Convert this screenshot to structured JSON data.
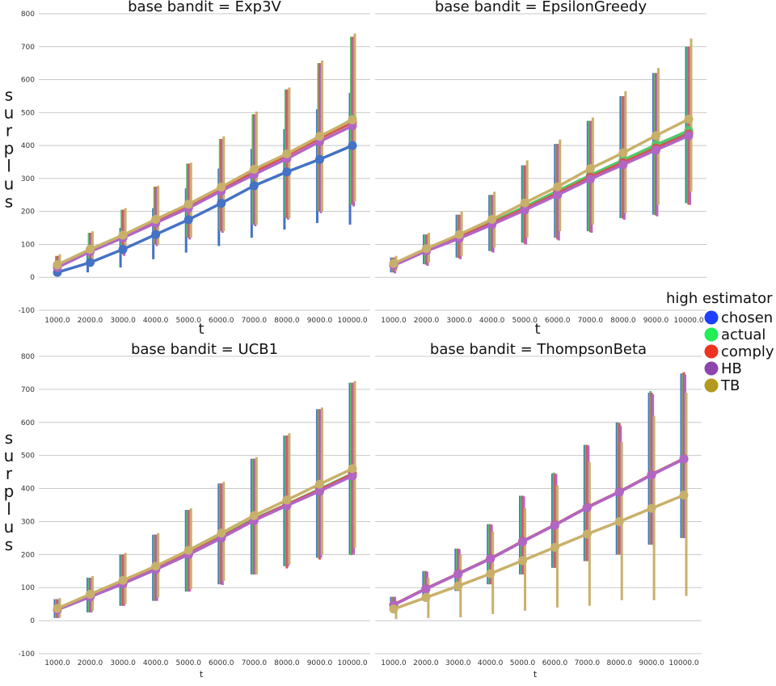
{
  "legend": {
    "title": "high estimator",
    "entries": [
      {
        "name": "chosen",
        "color": "#4472c4"
      },
      {
        "name": "actual",
        "color": "#55c567"
      },
      {
        "name": "comply",
        "color": "#d9534f"
      },
      {
        "name": "HB",
        "color": "#b266c4"
      },
      {
        "name": "TB",
        "color": "#c9b06a"
      }
    ],
    "markers": [
      {
        "name": "chosen",
        "color": "#1f3fff"
      },
      {
        "name": "actual",
        "color": "#22ee55"
      },
      {
        "name": "comply",
        "color": "#ee3322"
      },
      {
        "name": "HB",
        "color": "#8e44ad"
      },
      {
        "name": "TB",
        "color": "#b39a1e"
      }
    ]
  },
  "chart_data": [
    {
      "type": "line",
      "title": "base bandit = Exp3V",
      "xlabel": "t",
      "ylabel": "surplus",
      "x": [
        "1000.0",
        "2000.0",
        "3000.0",
        "4000.0",
        "5000.0",
        "6000.0",
        "7000.0",
        "8000.0",
        "9000.0",
        "10000.0"
      ],
      "ylim": [
        -100,
        800
      ],
      "yticks": [
        -100,
        0,
        100,
        200,
        300,
        400,
        500,
        600,
        700,
        800
      ],
      "series": [
        {
          "name": "chosen",
          "values": [
            15,
            45,
            85,
            130,
            175,
            225,
            278,
            320,
            358,
            400
          ],
          "ci_low": [
            5,
            15,
            30,
            55,
            75,
            95,
            120,
            145,
            165,
            160
          ],
          "ci_high": [
            30,
            90,
            150,
            210,
            270,
            330,
            390,
            450,
            510,
            560
          ]
        },
        {
          "name": "actual",
          "values": [
            38,
            85,
            128,
            175,
            220,
            272,
            322,
            372,
            425,
            480
          ],
          "ci_low": [
            10,
            40,
            70,
            100,
            120,
            140,
            160,
            180,
            200,
            220
          ],
          "ci_high": [
            65,
            135,
            205,
            275,
            345,
            420,
            495,
            570,
            650,
            730
          ]
        },
        {
          "name": "comply",
          "values": [
            36,
            84,
            126,
            172,
            218,
            270,
            320,
            370,
            422,
            470
          ],
          "ci_low": [
            10,
            40,
            70,
            100,
            120,
            140,
            160,
            180,
            200,
            220
          ],
          "ci_high": [
            65,
            135,
            205,
            275,
            345,
            420,
            495,
            570,
            650,
            730
          ]
        },
        {
          "name": "HB",
          "values": [
            30,
            78,
            120,
            165,
            210,
            262,
            312,
            360,
            412,
            460
          ],
          "ci_low": [
            8,
            35,
            65,
            95,
            115,
            135,
            155,
            175,
            195,
            215
          ],
          "ci_high": [
            60,
            130,
            200,
            270,
            340,
            415,
            490,
            565,
            645,
            725
          ]
        },
        {
          "name": "TB",
          "values": [
            38,
            85,
            128,
            176,
            222,
            274,
            328,
            375,
            428,
            478
          ],
          "ci_low": [
            15,
            45,
            75,
            100,
            120,
            140,
            160,
            180,
            200,
            230
          ],
          "ci_high": [
            70,
            140,
            210,
            278,
            348,
            428,
            503,
            576,
            658,
            740
          ]
        }
      ]
    },
    {
      "type": "line",
      "title": "base bandit = EpsilonGreedy",
      "xlabel": "t",
      "ylabel": "",
      "x": [
        "1000.0",
        "2000.0",
        "3000.0",
        "4000.0",
        "5000.0",
        "6000.0",
        "7000.0",
        "8000.0",
        "9000.0",
        "10000.0"
      ],
      "ylim": [
        -100,
        800
      ],
      "yticks": [
        -100,
        0,
        100,
        200,
        300,
        400,
        500,
        600,
        700,
        800
      ],
      "series": [
        {
          "name": "chosen",
          "values": [
            40,
            85,
            122,
            165,
            210,
            258,
            305,
            350,
            395,
            440
          ],
          "ci_low": [
            15,
            40,
            60,
            80,
            105,
            120,
            140,
            180,
            190,
            225
          ],
          "ci_high": [
            60,
            130,
            190,
            250,
            340,
            405,
            475,
            550,
            620,
            700
          ]
        },
        {
          "name": "actual",
          "values": [
            40,
            85,
            125,
            168,
            214,
            262,
            310,
            356,
            402,
            445
          ],
          "ci_low": [
            15,
            40,
            60,
            80,
            105,
            120,
            140,
            180,
            190,
            225
          ],
          "ci_high": [
            60,
            130,
            190,
            250,
            340,
            405,
            475,
            550,
            620,
            700
          ]
        },
        {
          "name": "comply",
          "values": [
            38,
            83,
            122,
            165,
            208,
            255,
            304,
            348,
            392,
            435
          ],
          "ci_low": [
            15,
            38,
            58,
            78,
            102,
            115,
            137,
            178,
            188,
            220
          ],
          "ci_high": [
            60,
            130,
            190,
            250,
            340,
            405,
            475,
            550,
            620,
            700
          ]
        },
        {
          "name": "HB",
          "values": [
            36,
            80,
            118,
            160,
            204,
            250,
            298,
            342,
            386,
            430
          ],
          "ci_low": [
            12,
            35,
            55,
            75,
            100,
            112,
            135,
            175,
            185,
            220
          ],
          "ci_high": [
            58,
            128,
            188,
            248,
            338,
            403,
            473,
            548,
            618,
            698
          ]
        },
        {
          "name": "TB",
          "values": [
            42,
            87,
            130,
            176,
            226,
            275,
            330,
            378,
            430,
            480
          ],
          "ci_low": [
            20,
            45,
            65,
            90,
            120,
            140,
            160,
            195,
            220,
            260
          ],
          "ci_high": [
            65,
            135,
            200,
            260,
            355,
            418,
            485,
            565,
            635,
            725
          ]
        }
      ]
    },
    {
      "type": "line",
      "title": "base bandit = UCB1",
      "xlabel": "t",
      "ylabel": "surplus",
      "x": [
        "1000.0",
        "2000.0",
        "3000.0",
        "4000.0",
        "5000.0",
        "6000.0",
        "7000.0",
        "8000.0",
        "9000.0",
        "10000.0"
      ],
      "ylim": [
        -100,
        800
      ],
      "yticks": [
        -100,
        0,
        100,
        200,
        300,
        400,
        500,
        600,
        700,
        800
      ],
      "series": [
        {
          "name": "chosen",
          "values": [
            33,
            72,
            112,
            155,
            200,
            250,
            305,
            350,
            392,
            440
          ],
          "ci_low": [
            8,
            25,
            45,
            60,
            88,
            110,
            140,
            165,
            190,
            200
          ],
          "ci_high": [
            65,
            130,
            200,
            260,
            335,
            415,
            490,
            560,
            640,
            720
          ]
        },
        {
          "name": "actual",
          "values": [
            35,
            75,
            115,
            158,
            204,
            255,
            308,
            352,
            398,
            445
          ],
          "ci_low": [
            8,
            25,
            45,
            60,
            88,
            110,
            140,
            165,
            190,
            198
          ],
          "ci_high": [
            65,
            130,
            200,
            260,
            335,
            415,
            490,
            560,
            640,
            720
          ]
        },
        {
          "name": "comply",
          "values": [
            34,
            74,
            114,
            157,
            203,
            253,
            306,
            351,
            396,
            443
          ],
          "ci_low": [
            8,
            25,
            45,
            60,
            88,
            110,
            140,
            158,
            185,
            200
          ],
          "ci_high": [
            65,
            130,
            200,
            260,
            335,
            415,
            490,
            560,
            640,
            720
          ]
        },
        {
          "name": "HB",
          "values": [
            33,
            72,
            112,
            155,
            200,
            250,
            303,
            348,
            392,
            438
          ],
          "ci_low": [
            8,
            25,
            45,
            60,
            88,
            108,
            140,
            165,
            190,
            200
          ],
          "ci_high": [
            65,
            130,
            200,
            260,
            335,
            415,
            490,
            560,
            640,
            720
          ]
        },
        {
          "name": "TB",
          "values": [
            37,
            80,
            122,
            165,
            213,
            265,
            318,
            365,
            413,
            460
          ],
          "ci_low": [
            10,
            30,
            50,
            70,
            95,
            120,
            140,
            170,
            200,
            220
          ],
          "ci_high": [
            68,
            135,
            205,
            265,
            340,
            420,
            495,
            567,
            645,
            725
          ]
        }
      ]
    },
    {
      "type": "line",
      "title": "base bandit = ThompsonBeta",
      "xlabel": "t",
      "ylabel": "",
      "x": [
        "1000.0",
        "2000.0",
        "3000.0",
        "4000.0",
        "5000.0",
        "6000.0",
        "7000.0",
        "8000.0",
        "9000.0",
        "10000.0"
      ],
      "ylim": [
        -100,
        800
      ],
      "yticks": [
        -100,
        0,
        100,
        200,
        300,
        400,
        500,
        600,
        700,
        800
      ],
      "series": [
        {
          "name": "chosen",
          "values": [
            48,
            97,
            142,
            188,
            240,
            290,
            343,
            390,
            442,
            490
          ],
          "ci_low": [
            30,
            60,
            90,
            110,
            140,
            160,
            180,
            200,
            230,
            250
          ],
          "ci_high": [
            72,
            150,
            218,
            292,
            378,
            445,
            532,
            600,
            690,
            748
          ]
        },
        {
          "name": "actual",
          "values": [
            48,
            97,
            142,
            188,
            240,
            290,
            343,
            390,
            442,
            490
          ],
          "ci_low": [
            30,
            60,
            90,
            110,
            140,
            160,
            180,
            200,
            230,
            250
          ],
          "ci_high": [
            72,
            150,
            218,
            292,
            378,
            448,
            532,
            600,
            695,
            748
          ]
        },
        {
          "name": "comply",
          "values": [
            48,
            97,
            142,
            188,
            240,
            290,
            343,
            390,
            442,
            490
          ],
          "ci_low": [
            30,
            60,
            90,
            110,
            140,
            160,
            180,
            200,
            230,
            250
          ],
          "ci_high": [
            72,
            150,
            218,
            292,
            378,
            445,
            532,
            598,
            690,
            752
          ]
        },
        {
          "name": "HB",
          "values": [
            47,
            96,
            141,
            187,
            239,
            289,
            342,
            389,
            441,
            489
          ],
          "ci_low": [
            30,
            60,
            90,
            110,
            140,
            160,
            180,
            200,
            230,
            250
          ],
          "ci_high": [
            72,
            148,
            216,
            290,
            376,
            444,
            530,
            590,
            685,
            745
          ]
        },
        {
          "name": "TB",
          "values": [
            35,
            70,
            105,
            142,
            182,
            222,
            262,
            300,
            340,
            380
          ],
          "ci_low": [
            5,
            8,
            10,
            20,
            30,
            40,
            45,
            62,
            62,
            75
          ],
          "ci_high": [
            60,
            130,
            200,
            270,
            340,
            410,
            480,
            540,
            620,
            690
          ]
        }
      ]
    }
  ]
}
